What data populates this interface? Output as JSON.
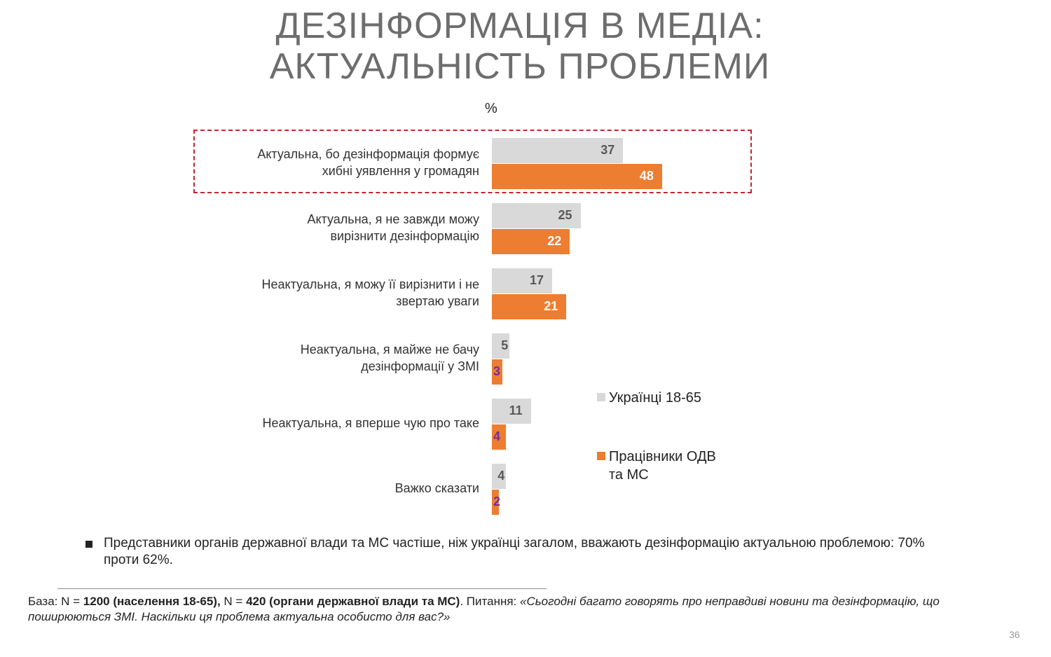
{
  "title_line1": "ДЕЗІНФОРМАЦІЯ В МЕДІА:",
  "title_line2": "АКТУАЛЬНІСТЬ ПРОБЛЕМИ",
  "unit": "%",
  "chart_data": {
    "type": "bar",
    "orientation": "horizontal",
    "categories": [
      "Актуальна, бо дезінформація формує хибні уявлення у громадян",
      "Актуальна, я не завжди можу вирізнити дезінформацію",
      "Неактуальна, я можу її вирізнити і не звертаю уваги",
      "Неактуальна, я майже не бачу дезінформації у ЗМІ",
      "Неактуальна, я вперше чую про таке",
      "Важко сказати"
    ],
    "series": [
      {
        "name": "Українці 18-65",
        "color": "#d9d9d9",
        "values": [
          37,
          25,
          17,
          5,
          11,
          4
        ]
      },
      {
        "name": "Працівники ОДВ та МС",
        "color": "#ed7d31",
        "values": [
          48,
          22,
          21,
          3,
          4,
          2
        ]
      }
    ],
    "highlighted_category_index": 0,
    "legend_position": "right"
  },
  "bullet_text": "Представники органів державної влади та МС частіше, ніж українці загалом, вважають дезінформацію актуальною проблемою: 70% проти 62%.",
  "footnote": {
    "p1": "База: N = ",
    "b1": "1200 (населення 18-65),",
    "p2": " N = ",
    "b2": "420 (органи державної влади та МС)",
    "p3": ". Питання: ",
    "q": "«Сьогодні багато говорять про неправдиві новини та дезінформацію, що поширюються ЗМІ. Наскільки ця проблема актуальна особисто для вас?»"
  },
  "page_number": "36"
}
